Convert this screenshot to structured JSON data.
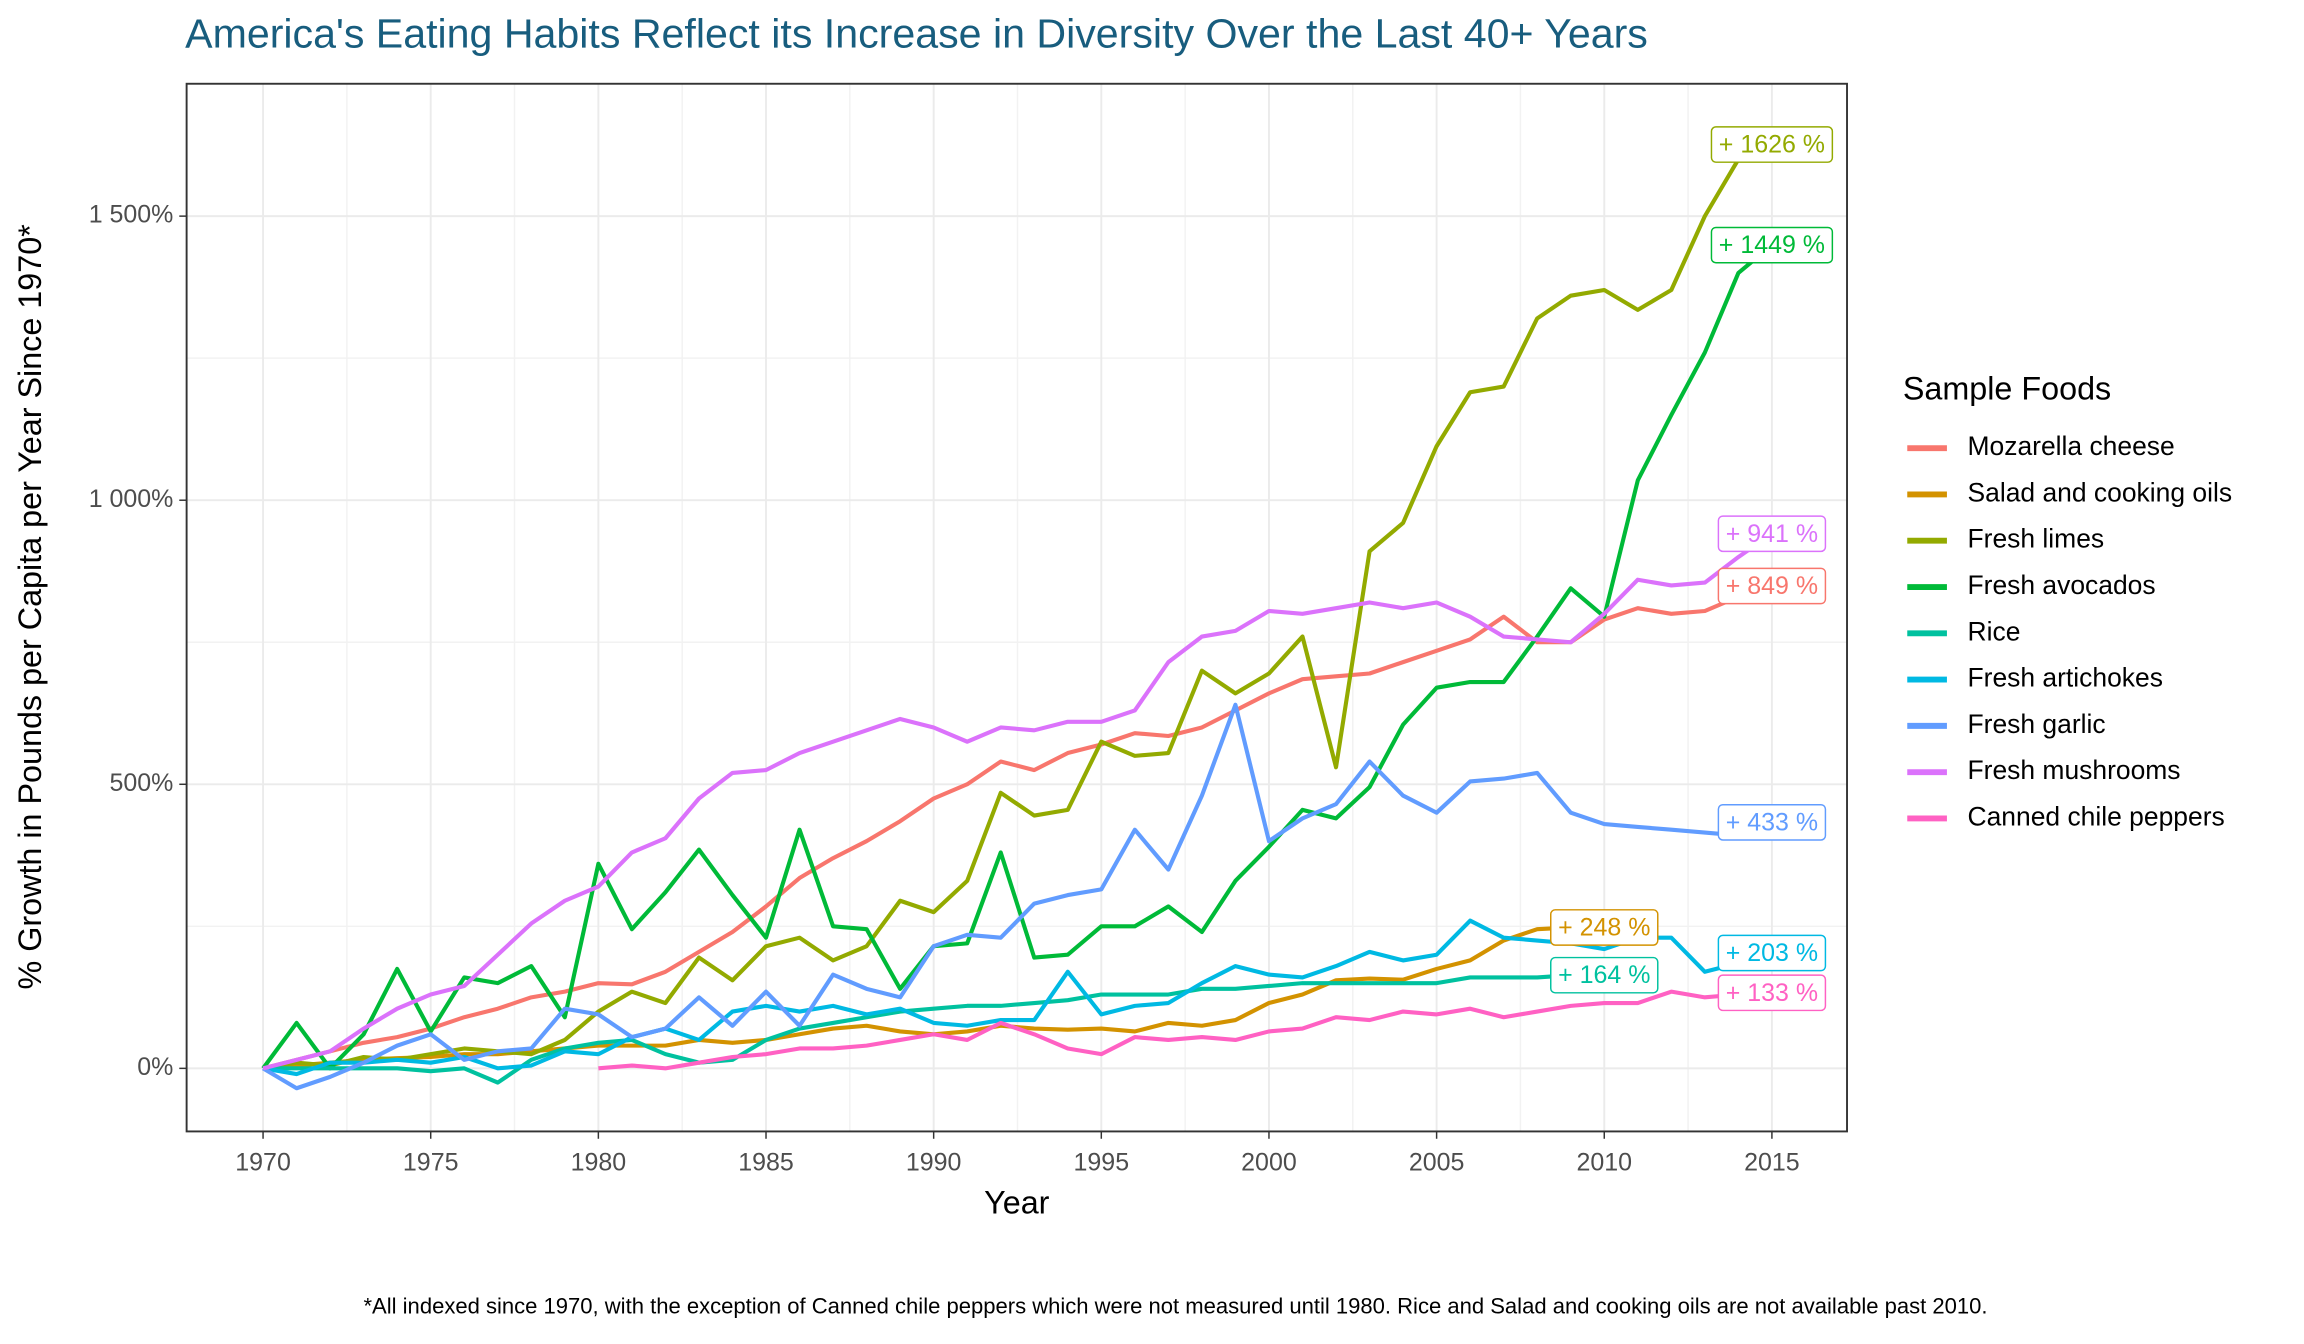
{
  "chart_data": {
    "type": "line",
    "title": "America's Eating Habits Reflect its Increase in Diversity Over the Last 40+ Years",
    "x_label": "Year",
    "y_label": "% Growth in Pounds per Capita per Year Since 1970*",
    "legend_title": "Sample Foods",
    "footnote": "*All indexed since 1970, with the exception of Canned chile peppers which were not measured until 1980. Rice and Salad and cooking oils are not available past 2010.",
    "legend_position": "right",
    "grid": true,
    "xlim": [
      1967.72,
      2017.24
    ],
    "ylim": [
      -111,
      1733
    ],
    "xticks": [
      1970,
      1975,
      1980,
      1985,
      1990,
      1995,
      2000,
      2005,
      2010,
      2015
    ],
    "yticks": [
      {
        "value": 0,
        "label": "0%"
      },
      {
        "value": 500,
        "label": "500%"
      },
      {
        "value": 1000,
        "label": "1 000%"
      },
      {
        "value": 1500,
        "label": "1 500%"
      }
    ],
    "x": [
      1970,
      1971,
      1972,
      1973,
      1974,
      1975,
      1976,
      1977,
      1978,
      1979,
      1980,
      1981,
      1982,
      1983,
      1984,
      1985,
      1986,
      1987,
      1988,
      1989,
      1990,
      1991,
      1992,
      1993,
      1994,
      1995,
      1996,
      1997,
      1998,
      1999,
      2000,
      2001,
      2002,
      2003,
      2004,
      2005,
      2006,
      2007,
      2008,
      2009,
      2010,
      2011,
      2012,
      2013,
      2014,
      2015
    ],
    "series": [
      {
        "name": "Mozarella cheese",
        "color": "#F8766D",
        "values": [
          0,
          15,
          30,
          45,
          55,
          70,
          90,
          105,
          125,
          135,
          150,
          148,
          170,
          205,
          240,
          285,
          335,
          370,
          400,
          435,
          475,
          500,
          540,
          525,
          555,
          570,
          590,
          585,
          600,
          630,
          660,
          685,
          690,
          695,
          715,
          735,
          755,
          795,
          750,
          750,
          790,
          810,
          800,
          805,
          830,
          849
        ],
        "value_labels": [
          null,
          null,
          null,
          null,
          null,
          null,
          null,
          null,
          null,
          null,
          null,
          null,
          null,
          null,
          null,
          null,
          null,
          null,
          null,
          null,
          null,
          null,
          null,
          null,
          null,
          null,
          null,
          null,
          null,
          null,
          null,
          null,
          null,
          null,
          null,
          null,
          null,
          null,
          null,
          null,
          null,
          null,
          null,
          null,
          null,
          "+ 849 %"
        ]
      },
      {
        "name": "Salad and cooking oils",
        "color": "#D39200",
        "values": [
          0,
          5,
          10,
          15,
          18,
          20,
          25,
          25,
          30,
          35,
          40,
          40,
          40,
          50,
          45,
          50,
          60,
          70,
          75,
          65,
          60,
          65,
          75,
          70,
          68,
          70,
          65,
          80,
          75,
          85,
          115,
          130,
          155,
          158,
          156,
          175,
          190,
          225,
          245,
          248,
          248,
          null,
          null,
          null,
          null,
          null
        ],
        "value_labels": [
          null,
          null,
          null,
          null,
          null,
          null,
          null,
          null,
          null,
          null,
          null,
          null,
          null,
          null,
          null,
          null,
          null,
          null,
          null,
          null,
          null,
          null,
          null,
          null,
          null,
          null,
          null,
          null,
          null,
          null,
          null,
          null,
          null,
          null,
          null,
          null,
          null,
          null,
          null,
          null,
          "+ 248 %",
          null,
          null,
          null,
          null,
          null
        ]
      },
      {
        "name": "Fresh limes",
        "color": "#93AA00",
        "values": [
          0,
          10,
          5,
          20,
          15,
          25,
          35,
          30,
          25,
          50,
          100,
          135,
          115,
          195,
          155,
          215,
          230,
          190,
          215,
          295,
          275,
          330,
          485,
          445,
          455,
          575,
          550,
          555,
          700,
          660,
          695,
          760,
          530,
          910,
          960,
          1095,
          1190,
          1200,
          1320,
          1360,
          1370,
          1335,
          1370,
          1500,
          1600,
          1626
        ],
        "value_labels": [
          null,
          null,
          null,
          null,
          null,
          null,
          null,
          null,
          null,
          null,
          null,
          null,
          null,
          null,
          null,
          null,
          null,
          null,
          null,
          null,
          null,
          null,
          null,
          null,
          null,
          null,
          null,
          null,
          null,
          null,
          null,
          null,
          null,
          null,
          null,
          null,
          null,
          null,
          null,
          null,
          null,
          null,
          null,
          null,
          null,
          "+ 1626 %"
        ]
      },
      {
        "name": "Fresh avocados",
        "color": "#00BA38",
        "values": [
          0,
          80,
          0,
          60,
          175,
          65,
          160,
          150,
          180,
          90,
          360,
          245,
          310,
          385,
          305,
          230,
          420,
          250,
          245,
          140,
          215,
          220,
          380,
          195,
          200,
          250,
          250,
          285,
          240,
          330,
          390,
          455,
          440,
          495,
          605,
          670,
          680,
          680,
          760,
          845,
          795,
          1035,
          1150,
          1260,
          1400,
          1449
        ],
        "value_labels": [
          null,
          null,
          null,
          null,
          null,
          null,
          null,
          null,
          null,
          null,
          null,
          null,
          null,
          null,
          null,
          null,
          null,
          null,
          null,
          null,
          null,
          null,
          null,
          null,
          null,
          null,
          null,
          null,
          null,
          null,
          null,
          null,
          null,
          null,
          null,
          null,
          null,
          null,
          null,
          null,
          null,
          null,
          null,
          null,
          null,
          "+ 1449 %"
        ]
      },
      {
        "name": "Rice",
        "color": "#00C19F",
        "values": [
          0,
          0,
          0,
          0,
          0,
          -5,
          0,
          -25,
          15,
          35,
          45,
          50,
          25,
          10,
          15,
          50,
          70,
          80,
          90,
          100,
          105,
          110,
          110,
          115,
          120,
          130,
          130,
          130,
          140,
          140,
          145,
          150,
          150,
          150,
          150,
          150,
          160,
          160,
          160,
          164,
          164,
          null,
          null,
          null,
          null,
          null
        ],
        "value_labels": [
          null,
          null,
          null,
          null,
          null,
          null,
          null,
          null,
          null,
          null,
          null,
          null,
          null,
          null,
          null,
          null,
          null,
          null,
          null,
          null,
          null,
          null,
          null,
          null,
          null,
          null,
          null,
          null,
          null,
          null,
          null,
          null,
          null,
          null,
          null,
          null,
          null,
          null,
          null,
          null,
          "+ 164 %",
          null,
          null,
          null,
          null,
          null
        ]
      },
      {
        "name": "Fresh artichokes",
        "color": "#00B9E3",
        "values": [
          0,
          -10,
          10,
          10,
          15,
          10,
          20,
          0,
          5,
          30,
          25,
          55,
          70,
          50,
          100,
          110,
          100,
          110,
          95,
          105,
          80,
          75,
          85,
          85,
          170,
          95,
          110,
          115,
          150,
          180,
          165,
          160,
          180,
          205,
          190,
          200,
          260,
          230,
          225,
          220,
          210,
          230,
          230,
          170,
          185,
          203
        ],
        "value_labels": [
          null,
          null,
          null,
          null,
          null,
          null,
          null,
          null,
          null,
          null,
          null,
          null,
          null,
          null,
          null,
          null,
          null,
          null,
          null,
          null,
          null,
          null,
          null,
          null,
          null,
          null,
          null,
          null,
          null,
          null,
          null,
          null,
          null,
          null,
          null,
          null,
          null,
          null,
          null,
          null,
          null,
          null,
          null,
          null,
          null,
          "+ 203 %"
        ]
      },
      {
        "name": "Fresh garlic",
        "color": "#619CFF",
        "values": [
          0,
          -35,
          -15,
          10,
          40,
          60,
          15,
          30,
          35,
          105,
          95,
          55,
          70,
          125,
          75,
          135,
          75,
          165,
          140,
          125,
          215,
          235,
          230,
          290,
          305,
          315,
          420,
          350,
          480,
          640,
          400,
          440,
          465,
          540,
          480,
          450,
          505,
          510,
          520,
          450,
          430,
          425,
          420,
          415,
          410,
          433
        ],
        "value_labels": [
          null,
          null,
          null,
          null,
          null,
          null,
          null,
          null,
          null,
          null,
          null,
          null,
          null,
          null,
          null,
          null,
          null,
          null,
          null,
          null,
          null,
          null,
          null,
          null,
          null,
          null,
          null,
          null,
          null,
          null,
          null,
          null,
          null,
          null,
          null,
          null,
          null,
          null,
          null,
          null,
          null,
          null,
          null,
          null,
          null,
          "+ 433 %"
        ]
      },
      {
        "name": "Fresh mushrooms",
        "color": "#DB72FB",
        "values": [
          0,
          15,
          30,
          70,
          105,
          130,
          145,
          200,
          255,
          295,
          320,
          380,
          405,
          475,
          520,
          525,
          555,
          575,
          595,
          615,
          600,
          575,
          600,
          595,
          610,
          610,
          630,
          715,
          760,
          770,
          805,
          800,
          810,
          820,
          810,
          820,
          795,
          760,
          755,
          750,
          800,
          860,
          850,
          855,
          900,
          941
        ],
        "value_labels": [
          null,
          null,
          null,
          null,
          null,
          null,
          null,
          null,
          null,
          null,
          null,
          null,
          null,
          null,
          null,
          null,
          null,
          null,
          null,
          null,
          null,
          null,
          null,
          null,
          null,
          null,
          null,
          null,
          null,
          null,
          null,
          null,
          null,
          null,
          null,
          null,
          null,
          null,
          null,
          null,
          null,
          null,
          null,
          null,
          null,
          "+ 941 %"
        ]
      },
      {
        "name": "Canned chile peppers",
        "color": "#FF61C3",
        "values": [
          null,
          null,
          null,
          null,
          null,
          null,
          null,
          null,
          null,
          null,
          0,
          5,
          0,
          10,
          20,
          25,
          35,
          35,
          40,
          50,
          60,
          50,
          80,
          60,
          35,
          25,
          55,
          50,
          55,
          50,
          65,
          70,
          90,
          85,
          100,
          95,
          105,
          90,
          100,
          110,
          115,
          115,
          135,
          125,
          130,
          133
        ],
        "value_labels": [
          null,
          null,
          null,
          null,
          null,
          null,
          null,
          null,
          null,
          null,
          null,
          null,
          null,
          null,
          null,
          null,
          null,
          null,
          null,
          null,
          null,
          null,
          null,
          null,
          null,
          null,
          null,
          null,
          null,
          null,
          null,
          null,
          null,
          null,
          null,
          null,
          null,
          null,
          null,
          null,
          null,
          null,
          null,
          null,
          null,
          "+ 133 %"
        ]
      }
    ]
  }
}
